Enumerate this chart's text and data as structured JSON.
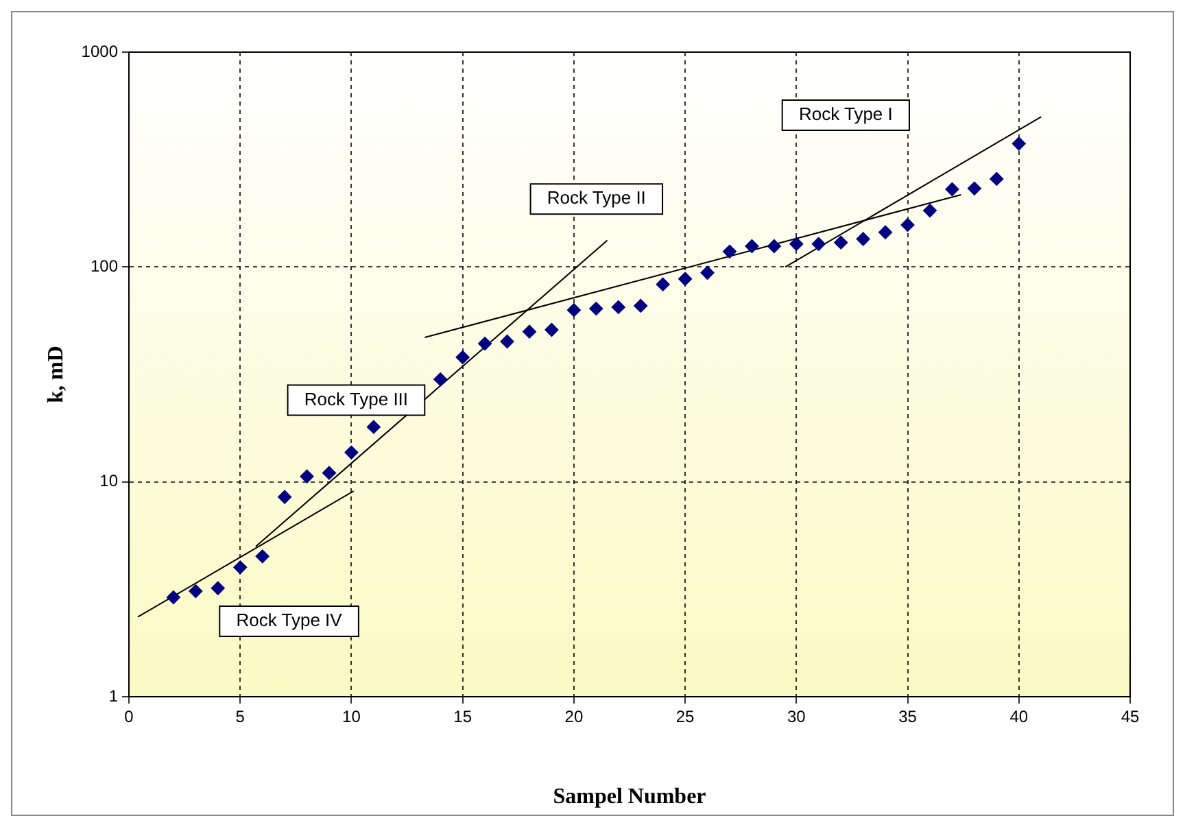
{
  "chart_data": {
    "type": "scatter",
    "xlabel": "Sampel Number",
    "ylabel": "k, mD",
    "log": "y",
    "xlim": [
      0,
      45
    ],
    "xticks": [
      0,
      5,
      10,
      15,
      20,
      25,
      30,
      35,
      40,
      45
    ],
    "ylim": [
      1,
      1000
    ],
    "yticks": [
      1,
      10,
      100,
      1000
    ],
    "grid": true,
    "marker": "diamond",
    "series": [
      {
        "color": "#000080",
        "x": [
          2,
          3,
          4,
          5,
          6,
          7,
          8,
          9,
          10,
          11,
          14,
          15,
          16,
          17,
          18,
          19,
          20,
          21,
          22,
          23,
          24,
          25,
          26,
          27,
          28,
          29,
          30,
          31,
          32,
          33,
          34,
          35,
          36,
          37,
          38,
          39,
          40
        ],
        "values": [
          2.9,
          3.1,
          3.2,
          4.0,
          4.5,
          8.5,
          10.6,
          11,
          13.7,
          18,
          30,
          38,
          44,
          45,
          50,
          51,
          63,
          64,
          65,
          66,
          83,
          88,
          94,
          118,
          125,
          125,
          128,
          128,
          130,
          135,
          145,
          157,
          183,
          230,
          232,
          257,
          375
        ]
      },
      {
        "type": "line",
        "marker": "none",
        "color": "#000000",
        "x": [
          0.4,
          10.1
        ],
        "values": [
          2.35,
          9.06
        ]
      },
      {
        "type": "line",
        "marker": "none",
        "color": "#000000",
        "x": [
          5.7,
          21.5
        ],
        "values": [
          5.0,
          133
        ]
      },
      {
        "type": "line",
        "marker": "none",
        "color": "#000000",
        "x": [
          13.3,
          37.4
        ],
        "values": [
          47,
          217
        ]
      },
      {
        "type": "line",
        "marker": "none",
        "color": "#000000",
        "x": [
          29.5,
          41.0
        ],
        "values": [
          100,
          500
        ]
      }
    ],
    "annotations": [
      "Rock Type IV",
      "Rock Type III",
      "Rock Type II",
      "Rock Type I"
    ]
  }
}
